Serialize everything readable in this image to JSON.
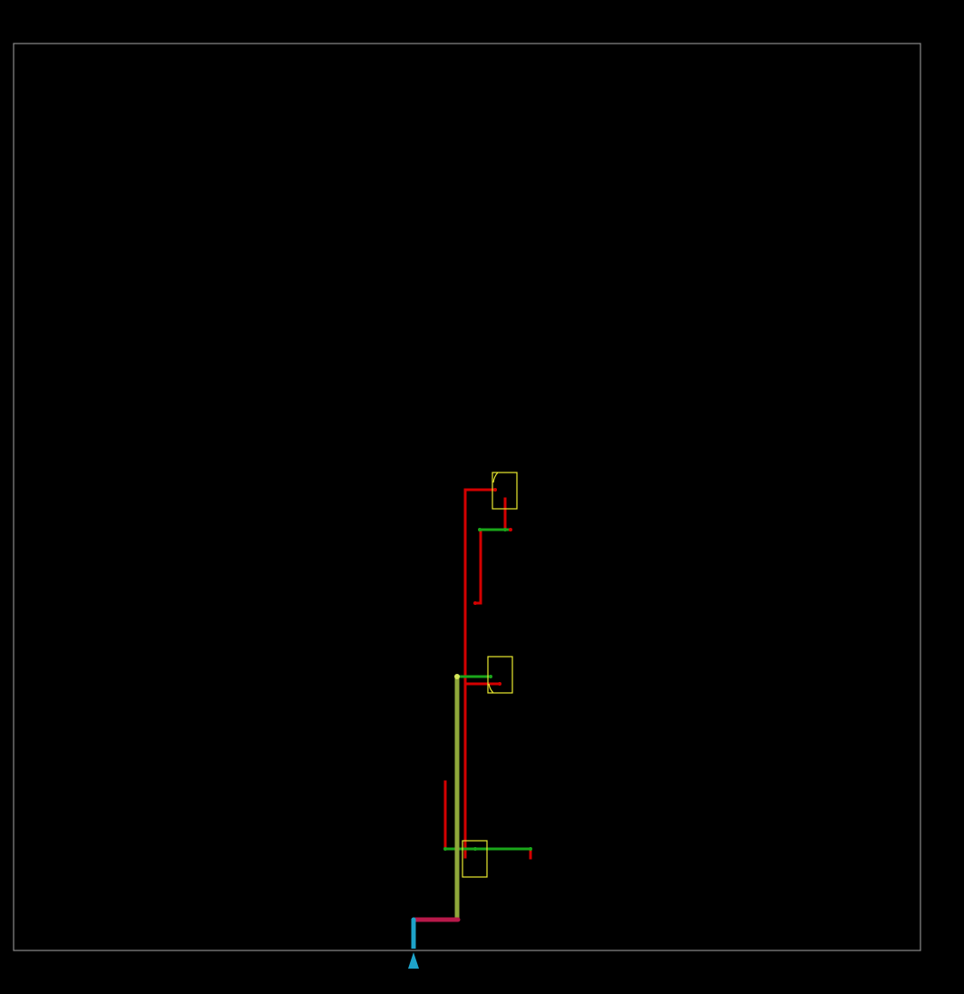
{
  "diagram": {
    "background": "#000000",
    "colors": {
      "frame": "#8a8a8a",
      "feeder_red": "#d40000",
      "branch_green": "#1aa61a",
      "main_olive": "#8fa83a",
      "riser_crimson": "#b8194a",
      "service_cyan": "#1ea3c9",
      "fixture_yellow": "#e8e830",
      "node_yellow": "#d6e85a"
    },
    "icons": {
      "source": "triangle-marker-icon",
      "fixture": "rectangle-fixture-icon"
    },
    "fixtures": [
      {
        "name": "upper-fixture"
      },
      {
        "name": "middle-fixture"
      },
      {
        "name": "lower-fixture"
      }
    ]
  }
}
